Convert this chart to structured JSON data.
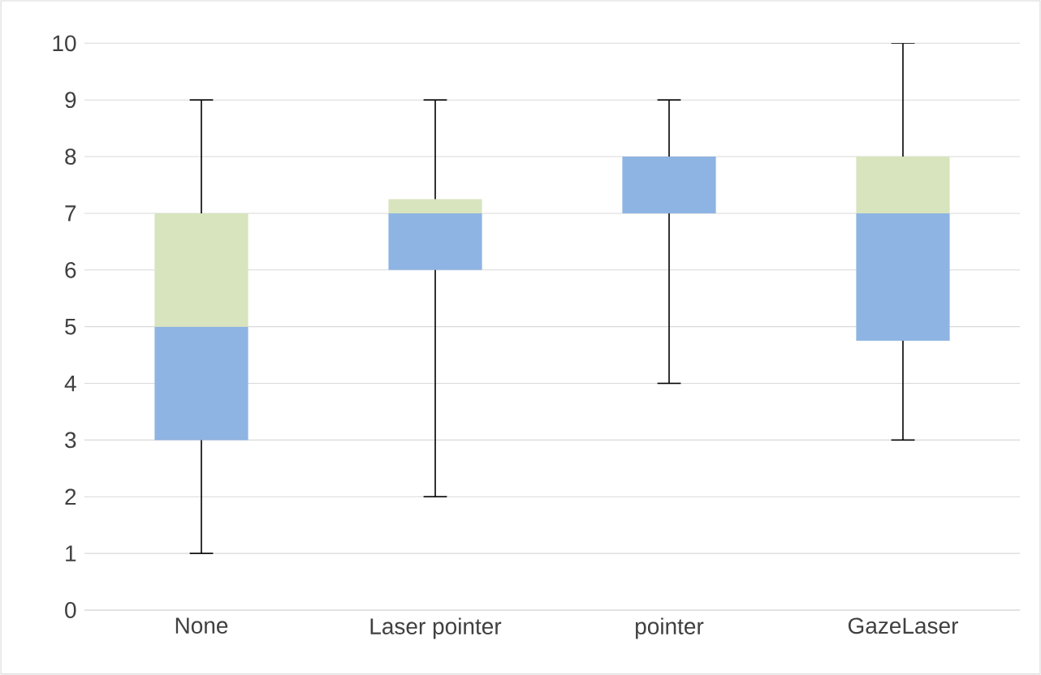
{
  "chart_data": {
    "type": "box",
    "categories": [
      "None",
      "Laser pointer",
      "pointer",
      "GazeLaser"
    ],
    "series": [
      {
        "color": "#8eb4e3",
        "boxes": [
          {
            "low": 1,
            "q1": 3,
            "median": 5,
            "q3": 7,
            "high": 9
          },
          {
            "low": 2,
            "q1": 6,
            "median": 7,
            "q3": 7.25,
            "high": 9
          },
          {
            "low": 4,
            "q1": 7,
            "median": 8,
            "q3": 8,
            "high": 9
          },
          {
            "low": 3,
            "q1": 4.75,
            "median": 7,
            "q3": 8,
            "high": 10
          }
        ]
      }
    ],
    "color": "#d7e4bd",
    "ylim": [
      0,
      10
    ],
    "yticks": [
      0,
      1,
      2,
      3,
      4,
      5,
      6,
      7,
      8,
      9,
      10
    ],
    "grid": "y"
  }
}
